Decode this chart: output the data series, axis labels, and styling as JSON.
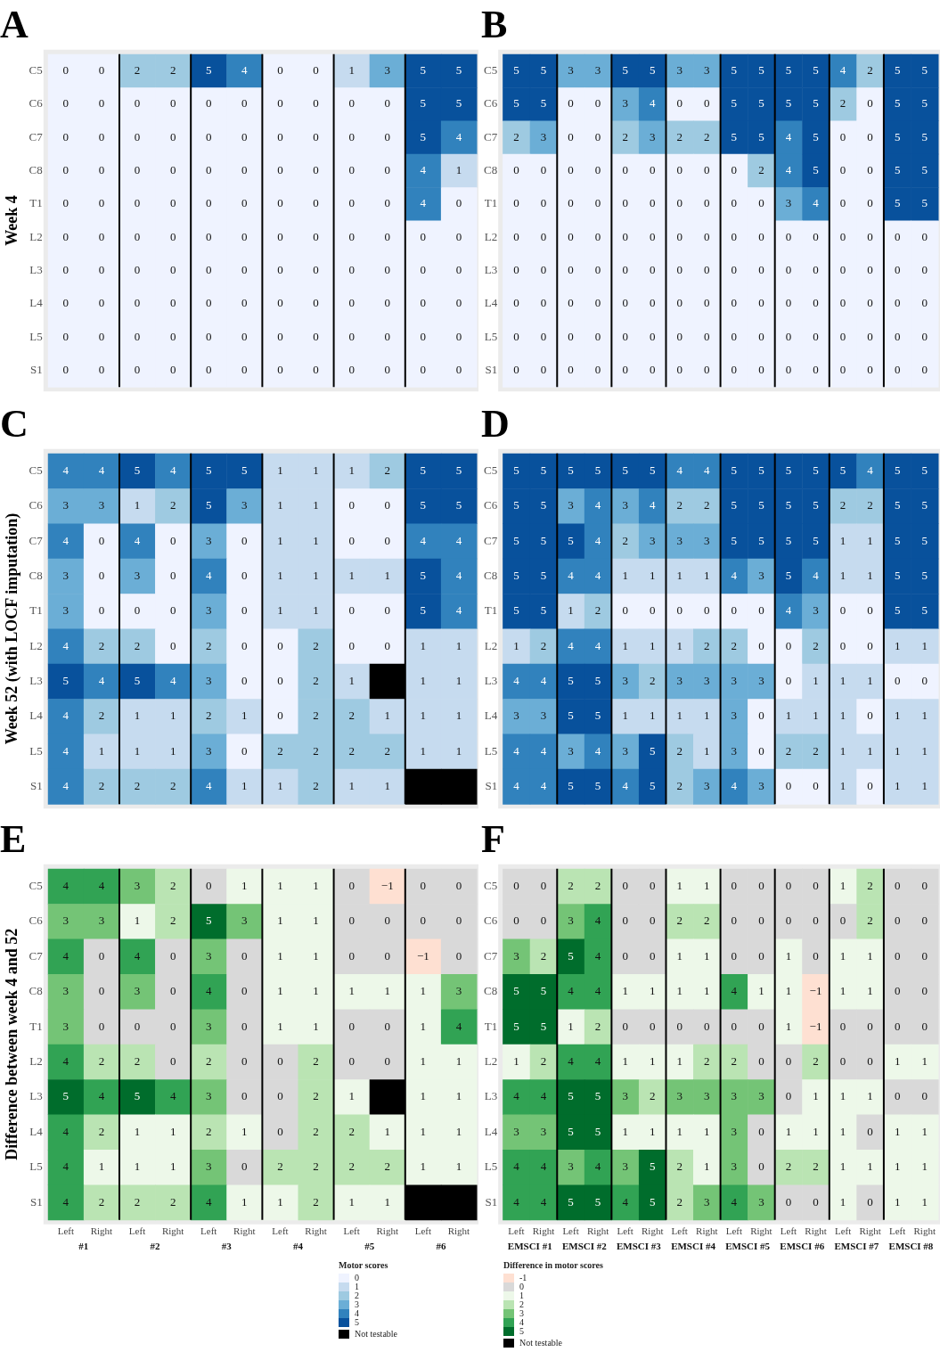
{
  "chart_data": [
    {
      "type": "heatmap",
      "title": "A",
      "ylabel": "Week 4",
      "tick_labels": "y",
      "data_labels": true,
      "categories": [
        null,
        null,
        null,
        null,
        null,
        null,
        null,
        null,
        null,
        null,
        null,
        null
      ],
      "y_categories": [
        "C5",
        "C6",
        "C7",
        "C8",
        "T1",
        "L2",
        "L3",
        "L4",
        "L5",
        "S1"
      ],
      "cells": [
        [
          0,
          0,
          2,
          2,
          5,
          4,
          0,
          0,
          1,
          3,
          5,
          5
        ],
        [
          0,
          0,
          0,
          0,
          0,
          0,
          0,
          0,
          0,
          0,
          5,
          5
        ],
        [
          0,
          0,
          0,
          0,
          0,
          0,
          0,
          0,
          0,
          0,
          5,
          4
        ],
        [
          0,
          0,
          0,
          0,
          0,
          0,
          0,
          0,
          0,
          0,
          4,
          1
        ],
        [
          0,
          0,
          0,
          0,
          0,
          0,
          0,
          0,
          0,
          0,
          4,
          0
        ],
        [
          0,
          0,
          0,
          0,
          0,
          0,
          0,
          0,
          0,
          0,
          0,
          0
        ],
        [
          0,
          0,
          0,
          0,
          0,
          0,
          0,
          0,
          0,
          0,
          0,
          0
        ],
        [
          0,
          0,
          0,
          0,
          0,
          0,
          0,
          0,
          0,
          0,
          0,
          0
        ],
        [
          0,
          0,
          0,
          0,
          0,
          0,
          0,
          0,
          0,
          0,
          0,
          0
        ],
        [
          0,
          0,
          0,
          0,
          0,
          0,
          0,
          0,
          0,
          0,
          0,
          0
        ]
      ]
    },
    {
      "type": "heatmap",
      "title": "B",
      "tick_labels": "y",
      "data_labels": true,
      "categories": [
        null,
        null,
        null,
        null,
        null,
        null,
        null,
        null,
        null,
        null,
        null,
        null,
        null,
        null,
        null,
        null
      ],
      "y_categories": [
        "C5",
        "C6",
        "C7",
        "C8",
        "T1",
        "L2",
        "L3",
        "L4",
        "L5",
        "S1"
      ],
      "cells": [
        [
          5,
          5,
          3,
          3,
          5,
          5,
          3,
          3,
          5,
          5,
          5,
          5,
          4,
          2,
          5,
          5
        ],
        [
          5,
          5,
          0,
          0,
          3,
          4,
          0,
          0,
          5,
          5,
          5,
          5,
          2,
          0,
          5,
          5
        ],
        [
          2,
          3,
          0,
          0,
          2,
          3,
          2,
          2,
          5,
          5,
          4,
          5,
          0,
          0,
          5,
          5
        ],
        [
          0,
          0,
          0,
          0,
          0,
          0,
          0,
          0,
          0,
          2,
          4,
          5,
          0,
          0,
          5,
          5
        ],
        [
          0,
          0,
          0,
          0,
          0,
          0,
          0,
          0,
          0,
          0,
          3,
          4,
          0,
          0,
          5,
          5
        ],
        [
          0,
          0,
          0,
          0,
          0,
          0,
          0,
          0,
          0,
          0,
          0,
          0,
          0,
          0,
          0,
          0
        ],
        [
          0,
          0,
          0,
          0,
          0,
          0,
          0,
          0,
          0,
          0,
          0,
          0,
          0,
          0,
          0,
          0
        ],
        [
          0,
          0,
          0,
          0,
          0,
          0,
          0,
          0,
          0,
          0,
          0,
          0,
          0,
          0,
          0,
          0
        ],
        [
          0,
          0,
          0,
          0,
          0,
          0,
          0,
          0,
          0,
          0,
          0,
          0,
          0,
          0,
          0,
          0
        ],
        [
          0,
          0,
          0,
          0,
          0,
          0,
          0,
          0,
          0,
          0,
          0,
          0,
          0,
          0,
          0,
          0
        ]
      ]
    },
    {
      "type": "heatmap",
      "title": "C",
      "ylabel": "Week 52 (with LOCF imputation)",
      "tick_labels": "y",
      "data_labels": true,
      "categories": [
        null,
        null,
        null,
        null,
        null,
        null,
        null,
        null,
        null,
        null,
        null,
        null
      ],
      "y_categories": [
        "C5",
        "C6",
        "C7",
        "C8",
        "T1",
        "L2",
        "L3",
        "L4",
        "L5",
        "S1"
      ],
      "clim": [
        0,
        5
      ],
      "colors": [
        "#eff3ff",
        "#c6dbef",
        "#9ecae1",
        "#6baed6",
        "#3182bd",
        "#08519c",
        "#000000"
      ],
      "clabel": "Motor scores",
      "cticks": [
        0,
        1,
        2,
        3,
        4,
        5,
        {
          "value": null,
          "label": "Not testable"
        }
      ],
      "cells": [
        [
          4,
          4,
          5,
          4,
          5,
          5,
          1,
          1,
          1,
          2,
          5,
          5
        ],
        [
          3,
          3,
          1,
          2,
          5,
          3,
          1,
          1,
          0,
          0,
          5,
          5
        ],
        [
          4,
          0,
          4,
          0,
          3,
          0,
          1,
          1,
          0,
          0,
          4,
          4
        ],
        [
          3,
          0,
          3,
          0,
          4,
          0,
          1,
          1,
          1,
          1,
          5,
          4
        ],
        [
          3,
          0,
          0,
          0,
          3,
          0,
          1,
          1,
          0,
          0,
          5,
          4
        ],
        [
          4,
          2,
          2,
          0,
          2,
          0,
          0,
          2,
          0,
          0,
          1,
          1
        ],
        [
          5,
          4,
          5,
          4,
          3,
          0,
          0,
          2,
          1,
          null,
          1,
          1
        ],
        [
          4,
          2,
          1,
          1,
          2,
          1,
          0,
          2,
          2,
          1,
          1,
          1
        ],
        [
          4,
          1,
          1,
          1,
          3,
          0,
          2,
          2,
          2,
          2,
          1,
          1
        ],
        [
          4,
          2,
          2,
          2,
          4,
          1,
          1,
          2,
          1,
          1,
          null,
          null
        ]
      ]
    },
    {
      "type": "heatmap",
      "title": "D",
      "tick_labels": "y",
      "data_labels": true,
      "categories": [
        null,
        null,
        null,
        null,
        null,
        null,
        null,
        null,
        null,
        null,
        null,
        null,
        null,
        null,
        null,
        null
      ],
      "y_categories": [
        "C5",
        "C6",
        "C7",
        "C8",
        "T1",
        "L2",
        "L3",
        "L4",
        "L5",
        "S1"
      ],
      "cells": [
        [
          5,
          5,
          5,
          5,
          5,
          5,
          4,
          4,
          5,
          5,
          5,
          5,
          5,
          4,
          5,
          5
        ],
        [
          5,
          5,
          3,
          4,
          3,
          4,
          2,
          2,
          5,
          5,
          5,
          5,
          2,
          2,
          5,
          5
        ],
        [
          5,
          5,
          5,
          4,
          2,
          3,
          3,
          3,
          5,
          5,
          5,
          5,
          1,
          1,
          5,
          5
        ],
        [
          5,
          5,
          4,
          4,
          1,
          1,
          1,
          1,
          4,
          3,
          5,
          4,
          1,
          1,
          5,
          5
        ],
        [
          5,
          5,
          1,
          2,
          0,
          0,
          0,
          0,
          0,
          0,
          4,
          3,
          0,
          0,
          5,
          5
        ],
        [
          1,
          2,
          4,
          4,
          1,
          1,
          1,
          2,
          2,
          0,
          0,
          2,
          0,
          0,
          1,
          1
        ],
        [
          4,
          4,
          5,
          5,
          3,
          2,
          3,
          3,
          3,
          3,
          0,
          1,
          1,
          1,
          0,
          0
        ],
        [
          3,
          3,
          5,
          5,
          1,
          1,
          1,
          1,
          3,
          0,
          1,
          1,
          1,
          0,
          1,
          1
        ],
        [
          4,
          4,
          3,
          4,
          3,
          5,
          2,
          1,
          3,
          0,
          2,
          2,
          1,
          1,
          1,
          1
        ],
        [
          4,
          4,
          5,
          5,
          4,
          5,
          2,
          3,
          4,
          3,
          0,
          0,
          1,
          0,
          1,
          1
        ]
      ]
    },
    {
      "type": "heatmap",
      "title": "E",
      "ylabel": "Difference between week 4 and 52",
      "data_labels": true,
      "categories": [
        "Left",
        "Right",
        "Left",
        "Right",
        "Left",
        "Right",
        "Left",
        "Right",
        "Left",
        "Right",
        "Left",
        "Right"
      ],
      "annotations": [
        "#1",
        "#2",
        "#3",
        "#4",
        "#5",
        "#6"
      ],
      "y_categories": [
        "C5",
        "C6",
        "C7",
        "C8",
        "T1",
        "L2",
        "L3",
        "L4",
        "L5",
        "S1"
      ],
      "cells": [
        [
          4,
          4,
          3,
          2,
          0,
          1,
          1,
          1,
          0,
          -1,
          0,
          0
        ],
        [
          3,
          3,
          1,
          2,
          5,
          3,
          1,
          1,
          0,
          0,
          0,
          0
        ],
        [
          4,
          0,
          4,
          0,
          3,
          0,
          1,
          1,
          0,
          0,
          -1,
          0
        ],
        [
          3,
          0,
          3,
          0,
          4,
          0,
          1,
          1,
          1,
          1,
          1,
          3
        ],
        [
          3,
          0,
          0,
          0,
          3,
          0,
          1,
          1,
          0,
          0,
          1,
          4
        ],
        [
          4,
          2,
          2,
          0,
          2,
          0,
          0,
          2,
          0,
          0,
          1,
          1
        ],
        [
          5,
          4,
          5,
          4,
          3,
          0,
          0,
          2,
          1,
          null,
          1,
          1
        ],
        [
          4,
          2,
          1,
          1,
          2,
          1,
          0,
          2,
          2,
          1,
          1,
          1
        ],
        [
          4,
          1,
          1,
          1,
          3,
          0,
          2,
          2,
          2,
          2,
          1,
          1
        ],
        [
          4,
          2,
          2,
          2,
          4,
          1,
          1,
          2,
          1,
          1,
          null,
          null
        ]
      ]
    },
    {
      "type": "heatmap",
      "title": "F",
      "data_labels": true,
      "categories": [
        "Left",
        "Right",
        "Left",
        "Right",
        "Left",
        "Right",
        "Left",
        "Right",
        "Left",
        "Right",
        "Left",
        "Right",
        "Left",
        "Right",
        "Left",
        "Right"
      ],
      "annotations": [
        "EMSCI #1",
        "EMSCI #2",
        "EMSCI #3",
        "EMSCI #4",
        "EMSCI #5",
        "EMSCI #6",
        "EMSCI #7",
        "EMSCI #8"
      ],
      "y_categories": [
        "C5",
        "C6",
        "C7",
        "C8",
        "T1",
        "L2",
        "L3",
        "L4",
        "L5",
        "S1"
      ],
      "clim": [
        -1,
        5
      ],
      "colors": [
        "#fee0d2",
        "#d9d9d9",
        "#edf8e9",
        "#bae4b3",
        "#74c476",
        "#31a354",
        "#006d2c",
        "#000000"
      ],
      "clabel": "Difference in motor scores",
      "cticks": [
        -1,
        0,
        1,
        2,
        3,
        4,
        5,
        {
          "value": null,
          "label": "Not testable"
        }
      ],
      "cells": [
        [
          0,
          0,
          2,
          2,
          0,
          0,
          1,
          1,
          0,
          0,
          0,
          0,
          1,
          2,
          0,
          0
        ],
        [
          0,
          0,
          3,
          4,
          0,
          0,
          2,
          2,
          0,
          0,
          0,
          0,
          0,
          2,
          0,
          0
        ],
        [
          3,
          2,
          5,
          4,
          0,
          0,
          1,
          1,
          0,
          0,
          1,
          0,
          1,
          1,
          0,
          0
        ],
        [
          5,
          5,
          4,
          4,
          1,
          1,
          1,
          1,
          4,
          1,
          1,
          -1,
          1,
          1,
          0,
          0
        ],
        [
          5,
          5,
          1,
          2,
          0,
          0,
          0,
          0,
          0,
          0,
          1,
          -1,
          0,
          0,
          0,
          0
        ],
        [
          1,
          2,
          4,
          4,
          1,
          1,
          1,
          2,
          2,
          0,
          0,
          2,
          0,
          0,
          1,
          1
        ],
        [
          4,
          4,
          5,
          5,
          3,
          2,
          3,
          3,
          3,
          3,
          0,
          1,
          1,
          1,
          0,
          0
        ],
        [
          3,
          3,
          5,
          5,
          1,
          1,
          1,
          1,
          3,
          0,
          1,
          1,
          1,
          0,
          1,
          1
        ],
        [
          4,
          4,
          3,
          4,
          3,
          5,
          2,
          1,
          3,
          0,
          2,
          2,
          1,
          1,
          1,
          1
        ],
        [
          4,
          4,
          5,
          5,
          4,
          5,
          2,
          3,
          4,
          3,
          0,
          0,
          1,
          0,
          1,
          1
        ]
      ]
    }
  ]
}
